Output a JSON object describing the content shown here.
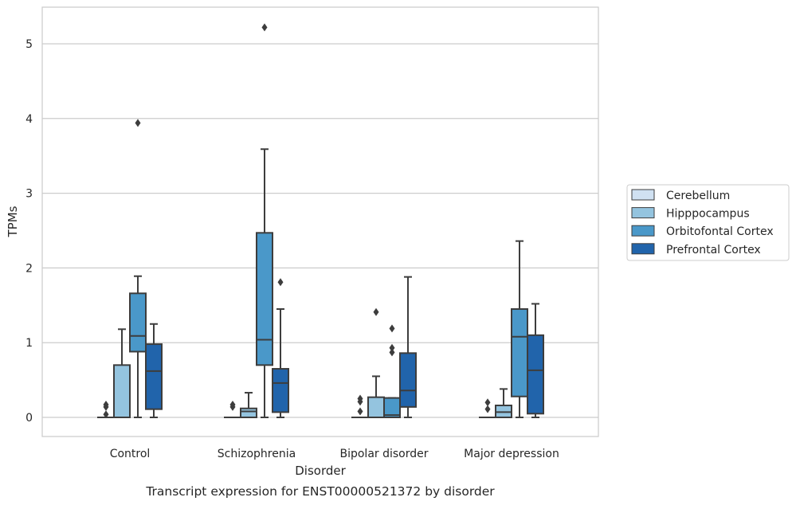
{
  "chart_data": {
    "type": "box",
    "xlabel": "Disorder",
    "ylabel": "TPMs",
    "caption": "Transcript expression for ENST00000521372 by disorder",
    "ylim": [
      -0.25,
      5.5
    ],
    "yticks": [
      0,
      1,
      2,
      3,
      4,
      5
    ],
    "grid": "horizontal",
    "legend_position": "right",
    "categories": [
      "Control",
      "Schizophrenia",
      "Bipolar disorder",
      "Major depression"
    ],
    "series": [
      {
        "name": "Cerebellum",
        "color": "#d0e1f2",
        "boxes": [
          {
            "min": 0,
            "q1": 0,
            "median": 0,
            "q3": 0,
            "max": 0,
            "outliers": [
              0.17,
              0.14,
              0.04
            ]
          },
          {
            "min": 0,
            "q1": 0,
            "median": 0,
            "q3": 0,
            "max": 0,
            "outliers": [
              0.17,
              0.14
            ]
          },
          {
            "min": 0,
            "q1": 0,
            "median": 0,
            "q3": 0,
            "max": 0,
            "outliers": [
              0.25,
              0.21,
              0.08
            ]
          },
          {
            "min": 0,
            "q1": 0,
            "median": 0,
            "q3": 0,
            "max": 0,
            "outliers": [
              0.2,
              0.11
            ]
          }
        ]
      },
      {
        "name": "Hipppocampus",
        "color": "#94c4df",
        "boxes": [
          {
            "min": 0,
            "q1": 0,
            "median": 0,
            "q3": 0.7,
            "max": 1.18,
            "outliers": []
          },
          {
            "min": 0,
            "q1": 0,
            "median": 0.08,
            "q3": 0.12,
            "max": 0.33,
            "outliers": []
          },
          {
            "min": 0,
            "q1": 0,
            "median": 0,
            "q3": 0.27,
            "max": 0.55,
            "outliers": [
              1.41
            ]
          },
          {
            "min": 0,
            "q1": 0,
            "median": 0.07,
            "q3": 0.16,
            "max": 0.38,
            "outliers": []
          }
        ]
      },
      {
        "name": "Orbitofontal Cortex",
        "color": "#4a98c9",
        "boxes": [
          {
            "min": 0,
            "q1": 0.88,
            "median": 1.09,
            "q3": 1.66,
            "max": 1.89,
            "outliers": [
              3.94
            ]
          },
          {
            "min": 0,
            "q1": 0.7,
            "median": 1.04,
            "q3": 2.47,
            "max": 3.59,
            "outliers": [
              5.22
            ]
          },
          {
            "min": 0,
            "q1": 0,
            "median": 0.03,
            "q3": 0.26,
            "max": 0.26,
            "outliers": [
              1.19,
              0.93,
              0.87
            ]
          },
          {
            "min": 0,
            "q1": 0.28,
            "median": 1.08,
            "q3": 1.45,
            "max": 2.36,
            "outliers": []
          }
        ]
      },
      {
        "name": "Prefrontal Cortex",
        "color": "#2164ab",
        "boxes": [
          {
            "min": 0,
            "q1": 0.11,
            "median": 0.62,
            "q3": 0.98,
            "max": 1.25,
            "outliers": []
          },
          {
            "min": 0,
            "q1": 0.07,
            "median": 0.46,
            "q3": 0.65,
            "max": 1.45,
            "outliers": [
              1.81
            ]
          },
          {
            "min": 0,
            "q1": 0.14,
            "median": 0.36,
            "q3": 0.86,
            "max": 1.88,
            "outliers": []
          },
          {
            "min": 0,
            "q1": 0.05,
            "median": 0.63,
            "q3": 1.1,
            "max": 1.52,
            "outliers": []
          }
        ]
      }
    ]
  }
}
